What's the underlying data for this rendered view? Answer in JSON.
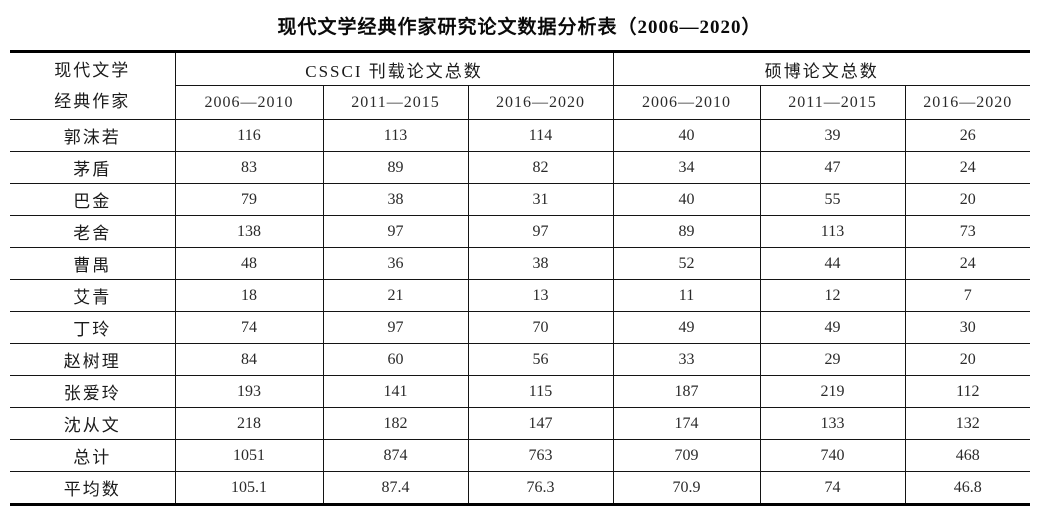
{
  "title": "现代文学经典作家研究论文数据分析表（2006—2020）",
  "table": {
    "row_header": {
      "line1": "现代文学",
      "line2": "经典作家"
    },
    "groups": [
      {
        "label": "CSSCI 刊载论文总数",
        "columns": [
          "2006—2010",
          "2011—2015",
          "2016—2020"
        ]
      },
      {
        "label": "硕博论文总数",
        "columns": [
          "2006—2010",
          "2011—2015",
          "2016—2020"
        ]
      }
    ],
    "rows": [
      {
        "label": "郭沫若",
        "values": [
          "116",
          "113",
          "114",
          "40",
          "39",
          "26"
        ]
      },
      {
        "label": "茅盾",
        "values": [
          "83",
          "89",
          "82",
          "34",
          "47",
          "24"
        ]
      },
      {
        "label": "巴金",
        "values": [
          "79",
          "38",
          "31",
          "40",
          "55",
          "20"
        ]
      },
      {
        "label": "老舍",
        "values": [
          "138",
          "97",
          "97",
          "89",
          "113",
          "73"
        ]
      },
      {
        "label": "曹禺",
        "values": [
          "48",
          "36",
          "38",
          "52",
          "44",
          "24"
        ]
      },
      {
        "label": "艾青",
        "values": [
          "18",
          "21",
          "13",
          "11",
          "12",
          "7"
        ]
      },
      {
        "label": "丁玲",
        "values": [
          "74",
          "97",
          "70",
          "49",
          "49",
          "30"
        ]
      },
      {
        "label": "赵树理",
        "values": [
          "84",
          "60",
          "56",
          "33",
          "29",
          "20"
        ]
      },
      {
        "label": "张爱玲",
        "values": [
          "193",
          "141",
          "115",
          "187",
          "219",
          "112"
        ]
      },
      {
        "label": "沈从文",
        "values": [
          "218",
          "182",
          "147",
          "174",
          "133",
          "132"
        ]
      },
      {
        "label": "总计",
        "values": [
          "1051",
          "874",
          "763",
          "709",
          "740",
          "468"
        ]
      },
      {
        "label": "平均数",
        "values": [
          "105.1",
          "87.4",
          "76.3",
          "70.9",
          "74",
          "46.8"
        ]
      }
    ]
  },
  "colors": {
    "background": "#ffffff",
    "text": "#1c1c1c",
    "border": "#141414"
  }
}
